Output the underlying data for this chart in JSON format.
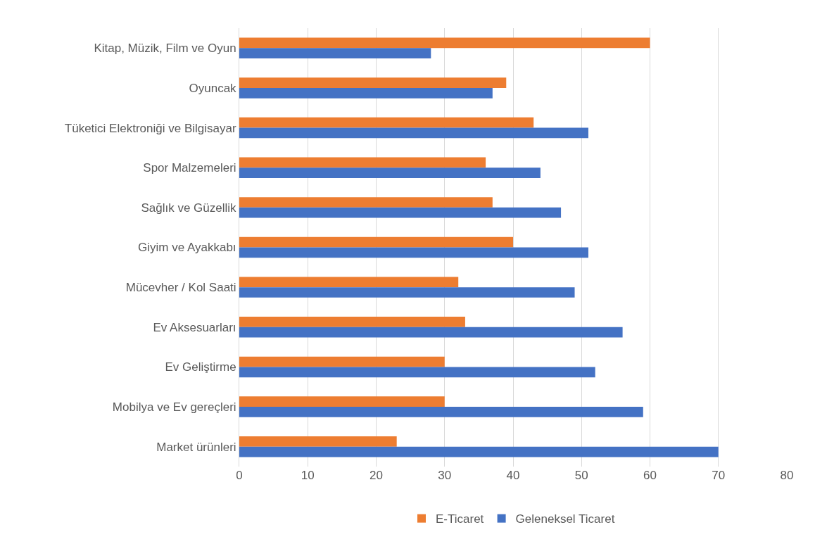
{
  "chart_data": {
    "type": "bar",
    "orientation": "horizontal",
    "categories": [
      "Kitap, Müzik, Film ve Oyun",
      "Oyuncak",
      "Tüketici Elektroniği ve Bilgisayar",
      "Spor Malzemeleri",
      "Sağlık ve Güzellik",
      "Giyim ve Ayakkabı",
      "Mücevher / Kol Saati",
      "Ev Aksesuarları",
      "Ev Geliştirme",
      "Mobilya ve Ev gereçleri",
      "Market ürünleri"
    ],
    "series": [
      {
        "name": "E-Ticaret",
        "color": "#ed7d31",
        "values": [
          60,
          39,
          43,
          36,
          37,
          40,
          32,
          33,
          30,
          30,
          23
        ]
      },
      {
        "name": "Geleneksel Ticaret",
        "color": "#4472c4",
        "values": [
          28,
          37,
          51,
          44,
          47,
          51,
          49,
          56,
          52,
          59,
          70
        ]
      }
    ],
    "xlim": [
      0,
      80
    ],
    "xticks": [
      0,
      10,
      20,
      30,
      40,
      50,
      60,
      70,
      80
    ],
    "grid": "x",
    "legend": "bottom"
  }
}
